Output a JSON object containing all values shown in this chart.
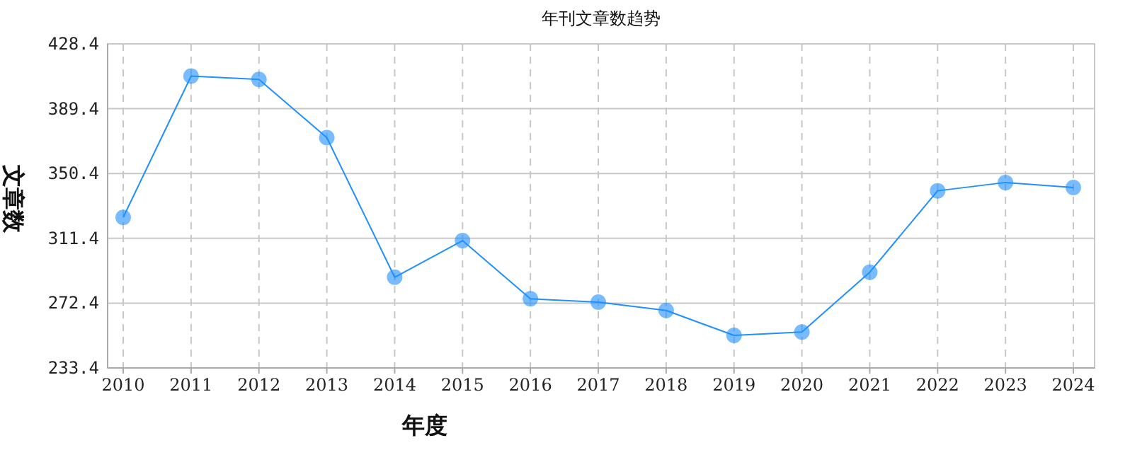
{
  "chart_data": {
    "type": "line",
    "title": "年刊文章数趋势",
    "xlabel": "年度",
    "ylabel": "文章数",
    "categories": [
      "2010",
      "2011",
      "2012",
      "2013",
      "2014",
      "2015",
      "2016",
      "2017",
      "2018",
      "2019",
      "2020",
      "2021",
      "2022",
      "2023",
      "2024"
    ],
    "series": [
      {
        "color": "#1e90ff",
        "values": [
          324,
          409,
          407,
          372,
          288,
          310,
          275,
          273,
          268,
          253,
          255,
          291,
          340,
          345,
          342
        ]
      }
    ],
    "ylim": [
      233.4,
      428.4
    ],
    "yticks": [
      {
        "value": 233.4,
        "label": "233.4"
      },
      {
        "value": 272.4,
        "label": "272.4"
      },
      {
        "value": 311.4,
        "label": "311.4"
      },
      {
        "value": 350.4,
        "label": "350.4"
      },
      {
        "value": 389.4,
        "label": "389.4"
      },
      {
        "value": 428.4,
        "label": "428.4"
      }
    ],
    "grid": true,
    "marker": "circle",
    "line_style": "solid"
  }
}
